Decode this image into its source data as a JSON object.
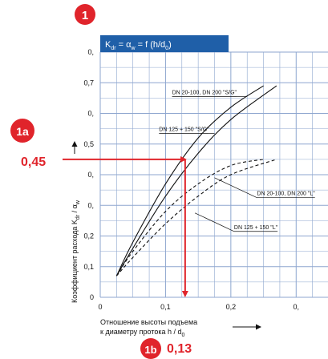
{
  "badges": {
    "b1": "1",
    "b1a": "1a",
    "b1b": "1b"
  },
  "colors": {
    "badge_red": "#e0242b",
    "title_blue": "#1f5fa8",
    "grid_blue": "#8ea6cf",
    "plot_bg": "#ffffff"
  },
  "chart_data": {
    "type": "line",
    "title_parts": {
      "k": "K",
      "k_sub": "dr",
      "eq": " = ",
      "alpha": "α",
      "alpha_sub": "w",
      "rest": " = f (h/d",
      "d_sub": "0",
      "close": ")"
    },
    "ylabel_parts": {
      "main": "Коэффициент расхода K",
      "k_sub": "dr",
      "sep": " / ",
      "alpha": "α",
      "alpha_sub": "w"
    },
    "xlabel_line1": "Отношение высоты подъема",
    "xlabel_line2_main": "к диаметру протока h / d",
    "xlabel_line2_sub": "0",
    "x_ticks": [
      {
        "v": 0,
        "label": "0"
      },
      {
        "v": 0.1,
        "label": "0,1"
      },
      {
        "v": 0.2,
        "label": "0,2"
      },
      {
        "v": 0.3,
        "label": "0,"
      }
    ],
    "y_ticks": [
      {
        "v": 0,
        "label": "0"
      },
      {
        "v": 0.1,
        "label": "0,1"
      },
      {
        "v": 0.2,
        "label": "0,2"
      },
      {
        "v": 0.3,
        "label": "0,"
      },
      {
        "v": 0.4,
        "label": "0,"
      },
      {
        "v": 0.5,
        "label": "0,5"
      },
      {
        "v": 0.6,
        "label": "0,"
      },
      {
        "v": 0.7,
        "label": "0,7"
      },
      {
        "v": 0.8,
        "label": "0,"
      }
    ],
    "xlim": [
      0,
      0.35
    ],
    "ylim": [
      0,
      0.8
    ],
    "grid": true,
    "series": [
      {
        "name": "DN 20-100, DN 200 \"S/G\"",
        "style": "solid",
        "x": [
          0.025,
          0.05,
          0.1,
          0.15,
          0.2,
          0.25
        ],
        "y": [
          0.07,
          0.18,
          0.37,
          0.52,
          0.62,
          0.69
        ]
      },
      {
        "name": "DN 125 + 150 \"S/G\"",
        "style": "solid",
        "x": [
          0.025,
          0.05,
          0.1,
          0.15,
          0.2,
          0.27
        ],
        "y": [
          0.07,
          0.16,
          0.33,
          0.47,
          0.58,
          0.69
        ]
      },
      {
        "name": "DN 20-100, DN 200 \"L\"",
        "style": "dashed",
        "x": [
          0.025,
          0.05,
          0.1,
          0.15,
          0.2,
          0.25
        ],
        "y": [
          0.07,
          0.15,
          0.28,
          0.37,
          0.43,
          0.45
        ]
      },
      {
        "name": "DN 125 + 150 \"L\"",
        "style": "dashed",
        "x": [
          0.025,
          0.05,
          0.1,
          0.15,
          0.2,
          0.27
        ],
        "y": [
          0.07,
          0.13,
          0.24,
          0.33,
          0.4,
          0.45
        ]
      }
    ],
    "reading": {
      "y_value": 0.45,
      "x_value": 0.13,
      "y_label": "0,45",
      "x_label": "0,13"
    }
  }
}
